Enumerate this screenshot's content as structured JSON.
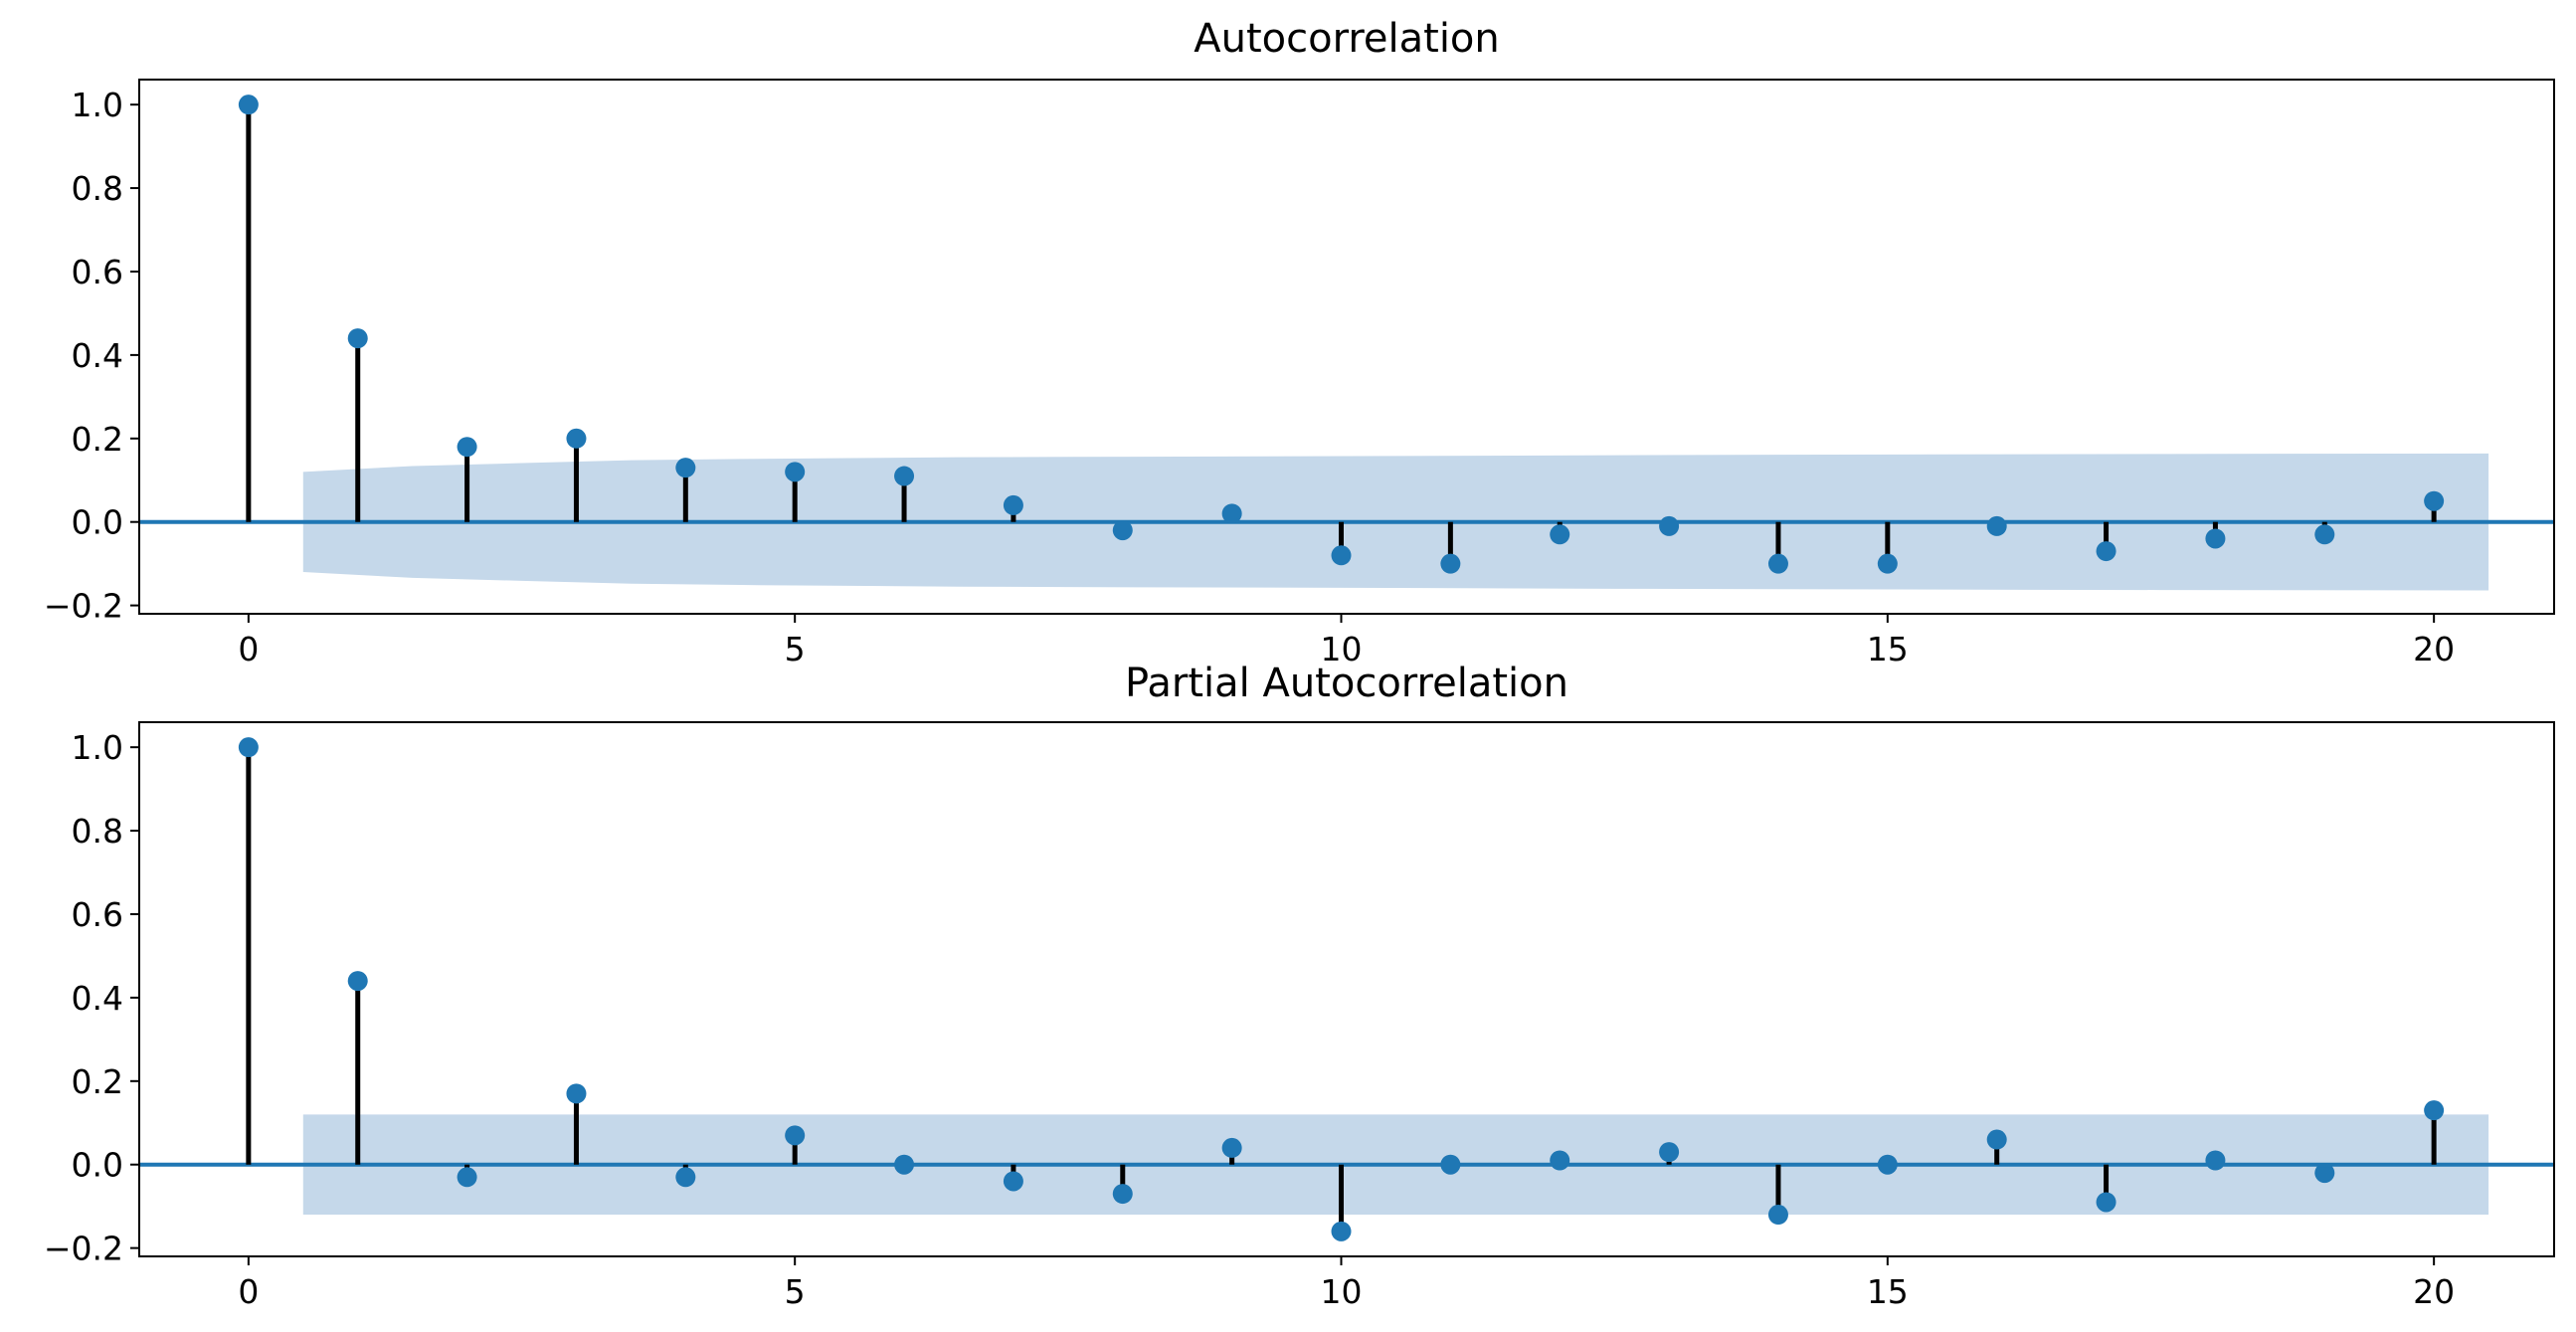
{
  "chart_data": [
    {
      "type": "stem",
      "title": "Autocorrelation",
      "xlabel": "",
      "ylabel": "",
      "xlim": [
        -1,
        21.1
      ],
      "ylim": [
        -0.22,
        1.06
      ],
      "xticks": [
        0,
        5,
        10,
        15,
        20
      ],
      "xtick_labels": [
        "0",
        "5",
        "10",
        "15",
        "20"
      ],
      "yticks": [
        1.0,
        0.8,
        0.6,
        0.4,
        0.2,
        0.0,
        -0.2
      ],
      "ytick_labels": [
        "1.0",
        "0.8",
        "0.6",
        "0.4",
        "0.2",
        "0.0",
        "−0.2"
      ],
      "x": [
        0,
        1,
        2,
        3,
        4,
        5,
        6,
        7,
        8,
        9,
        10,
        11,
        12,
        13,
        14,
        15,
        16,
        17,
        18,
        19,
        20
      ],
      "values": [
        1.0,
        0.44,
        0.18,
        0.2,
        0.13,
        0.12,
        0.11,
        0.04,
        -0.02,
        0.02,
        -0.08,
        -0.1,
        -0.03,
        -0.01,
        -0.1,
        -0.1,
        -0.01,
        -0.07,
        -0.04,
        -0.03,
        0.05
      ],
      "confidence_band": {
        "x": [
          0.5,
          1.5,
          2.5,
          3.5,
          4.5,
          5.5,
          6.5,
          7.5,
          10.5,
          12.5,
          15.5,
          17.5,
          20.5
        ],
        "upper": [
          0.12,
          0.134,
          0.141,
          0.148,
          0.151,
          0.153,
          0.155,
          0.156,
          0.158,
          0.16,
          0.162,
          0.163,
          0.164
        ]
      },
      "grid": false,
      "colors": {
        "markers": "#1f77b4",
        "stems": "#000000",
        "band": "#c5d8ea",
        "zero_line": "#1f77b4"
      }
    },
    {
      "type": "stem",
      "title": "Partial Autocorrelation",
      "xlabel": "",
      "ylabel": "",
      "xlim": [
        -1,
        21.1
      ],
      "ylim": [
        -0.22,
        1.06
      ],
      "xticks": [
        0,
        5,
        10,
        15,
        20
      ],
      "xtick_labels": [
        "0",
        "5",
        "10",
        "15",
        "20"
      ],
      "yticks": [
        1.0,
        0.8,
        0.6,
        0.4,
        0.2,
        0.0,
        -0.2
      ],
      "ytick_labels": [
        "1.0",
        "0.8",
        "0.6",
        "0.4",
        "0.2",
        "0.0",
        "−0.2"
      ],
      "x": [
        0,
        1,
        2,
        3,
        4,
        5,
        6,
        7,
        8,
        9,
        10,
        11,
        12,
        13,
        14,
        15,
        16,
        17,
        18,
        19,
        20
      ],
      "values": [
        1.0,
        0.44,
        -0.03,
        0.17,
        -0.03,
        0.07,
        0.0,
        -0.04,
        -0.07,
        0.04,
        -0.16,
        0.0,
        0.01,
        0.03,
        -0.12,
        0.0,
        0.06,
        -0.09,
        0.01,
        -0.02,
        0.13
      ],
      "confidence_band": {
        "x": [
          0.5,
          20.5
        ],
        "upper": [
          0.12,
          0.12
        ]
      },
      "grid": false,
      "colors": {
        "markers": "#1f77b4",
        "stems": "#000000",
        "band": "#c5d8ea",
        "zero_line": "#1f77b4"
      }
    }
  ]
}
